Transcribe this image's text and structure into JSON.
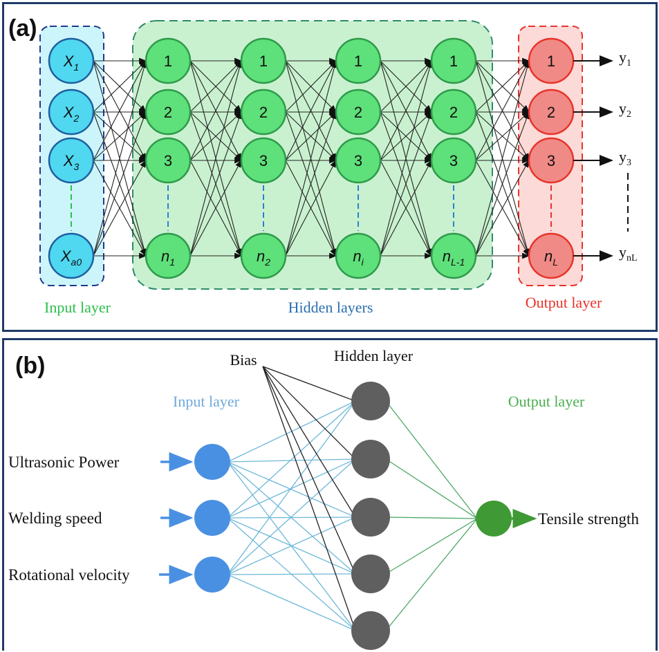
{
  "panel_a": {
    "label": "(a)",
    "input_nodes": [
      "X1",
      "X2",
      "X3",
      "Xa0"
    ],
    "hidden_layers": [
      {
        "nodes": [
          "1",
          "2",
          "3",
          "n1"
        ]
      },
      {
        "nodes": [
          "1",
          "2",
          "3",
          "n2"
        ]
      },
      {
        "nodes": [
          "1",
          "2",
          "3",
          "ni"
        ]
      },
      {
        "nodes": [
          "1",
          "2",
          "3",
          "nL-1"
        ]
      }
    ],
    "output_nodes": [
      "1",
      "2",
      "3",
      "nL"
    ],
    "outputs": [
      "y1",
      "y2",
      "y3",
      "ynL"
    ],
    "input_layer_label": "Input layer",
    "hidden_layers_label": "Hidden layers",
    "output_layer_label": "Output layer",
    "colors": {
      "input_fill": "#4fd8f0",
      "input_box": "#ccf5fb",
      "hidden_fill": "#5ee07a",
      "hidden_box": "#c9f1cf",
      "output_fill": "#f08a86",
      "output_box": "#fbdad8",
      "input_label": "#2bbf4a",
      "hidden_label": "#2a6fb0",
      "output_label": "#e8332a"
    }
  },
  "panel_b": {
    "label": "(b)",
    "bias_label": "Bias",
    "hidden_layer_label": "Hidden layer",
    "input_layer_label": "Input layer",
    "output_layer_label": "Output layer",
    "inputs": [
      "Ultrasonic Power",
      "Welding speed",
      "Rotational velocity"
    ],
    "output": "Tensile strength",
    "hidden_count": 5,
    "colors": {
      "input_node": "#4a90e2",
      "hidden_node": "#5f5f5f",
      "output_node": "#3f9a35",
      "input_label": "#6fa8dc",
      "output_label": "#4caf50"
    }
  }
}
